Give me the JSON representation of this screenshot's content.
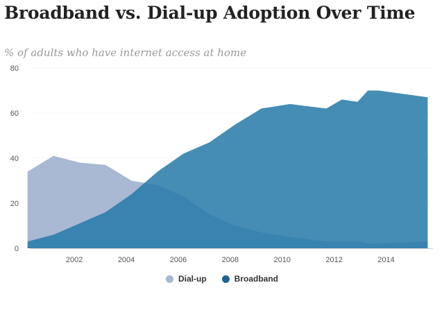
{
  "title": "Broadband vs. Dial-up Adoption Over Time",
  "subtitle": "% of adults who have internet access at home",
  "colors": {
    "dialup": "#a9b8d3",
    "broadband": "#2479a8",
    "legend_dialup": "#a9b8d3",
    "legend_broadband": "#1b6595"
  },
  "chart_data": {
    "type": "area",
    "xlim": [
      2000.1,
      2015.8
    ],
    "ylim": [
      0,
      80
    ],
    "grid": true,
    "legend_position": "bottom-center",
    "x_ticks": [
      "2002",
      "2004",
      "2006",
      "2008",
      "2010",
      "2012",
      "2014"
    ],
    "y_ticks": [
      "0",
      "20",
      "40",
      "60",
      "80"
    ],
    "series": [
      {
        "name": "Dial-up",
        "color_key": "dialup",
        "points": [
          [
            2000.2,
            34
          ],
          [
            2001.2,
            41
          ],
          [
            2002.2,
            38
          ],
          [
            2003.2,
            37
          ],
          [
            2004.2,
            30
          ],
          [
            2005.2,
            28
          ],
          [
            2006.2,
            23
          ],
          [
            2007.2,
            15
          ],
          [
            2008.2,
            10
          ],
          [
            2009.2,
            7
          ],
          [
            2010.3,
            5
          ],
          [
            2011.7,
            3
          ],
          [
            2013.0,
            3
          ],
          [
            2013.4,
            2
          ],
          [
            2015.6,
            3
          ]
        ]
      },
      {
        "name": "Broadband",
        "color_key": "broadband",
        "points": [
          [
            2000.2,
            3
          ],
          [
            2001.2,
            6
          ],
          [
            2002.2,
            11
          ],
          [
            2003.2,
            16
          ],
          [
            2004.2,
            24
          ],
          [
            2005.2,
            34
          ],
          [
            2006.2,
            42
          ],
          [
            2007.2,
            47
          ],
          [
            2008.2,
            55
          ],
          [
            2009.2,
            62
          ],
          [
            2010.3,
            64
          ],
          [
            2011.7,
            62
          ],
          [
            2012.3,
            66
          ],
          [
            2012.9,
            65
          ],
          [
            2013.3,
            70
          ],
          [
            2013.7,
            70
          ],
          [
            2015.6,
            67
          ]
        ]
      }
    ]
  },
  "legend": [
    {
      "label": "Dial-up",
      "color_key": "legend_dialup"
    },
    {
      "label": "Broadband",
      "color_key": "legend_broadband"
    }
  ]
}
